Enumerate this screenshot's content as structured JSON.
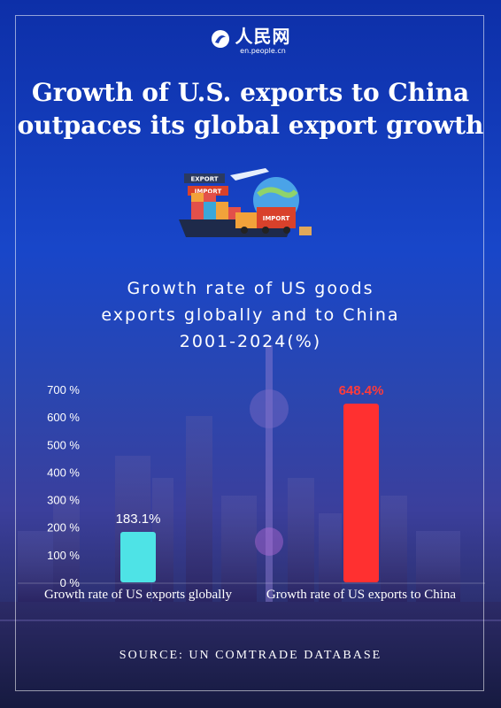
{
  "logo": {
    "name": "人民网",
    "sub": "en.people.cn"
  },
  "headline": {
    "line1": "Growth of U.S. exports to China",
    "line2": "outpaces its global export growth"
  },
  "illustration": {
    "export_sign": "EXPORT",
    "import_sign": "IMPORT",
    "truck_sign": "IMPORT"
  },
  "chart_data": {
    "type": "bar",
    "title_lines": [
      "Growth rate of US goods",
      "exports globally and to China",
      "2001-2024(%)"
    ],
    "categories": [
      "Growth rate of US exports globally",
      "Growth rate of US exports to China"
    ],
    "values": [
      183.1,
      648.4
    ],
    "value_labels": [
      "183.1%",
      "648.4%"
    ],
    "ylim": [
      0,
      700
    ],
    "yticks": [
      0,
      100,
      200,
      300,
      400,
      500,
      600,
      700
    ],
    "ytick_labels": [
      "0 %",
      "100 %",
      "200 %",
      "300 %",
      "400 %",
      "500 %",
      "600 %",
      "700 %"
    ],
    "colors": [
      "#4ee3e6",
      "#ff3030"
    ],
    "value_label_colors": [
      "#ffffff",
      "#ff3b3b"
    ],
    "grid": false
  },
  "source": "SOURCE: UN COMTRADE DATABASE"
}
